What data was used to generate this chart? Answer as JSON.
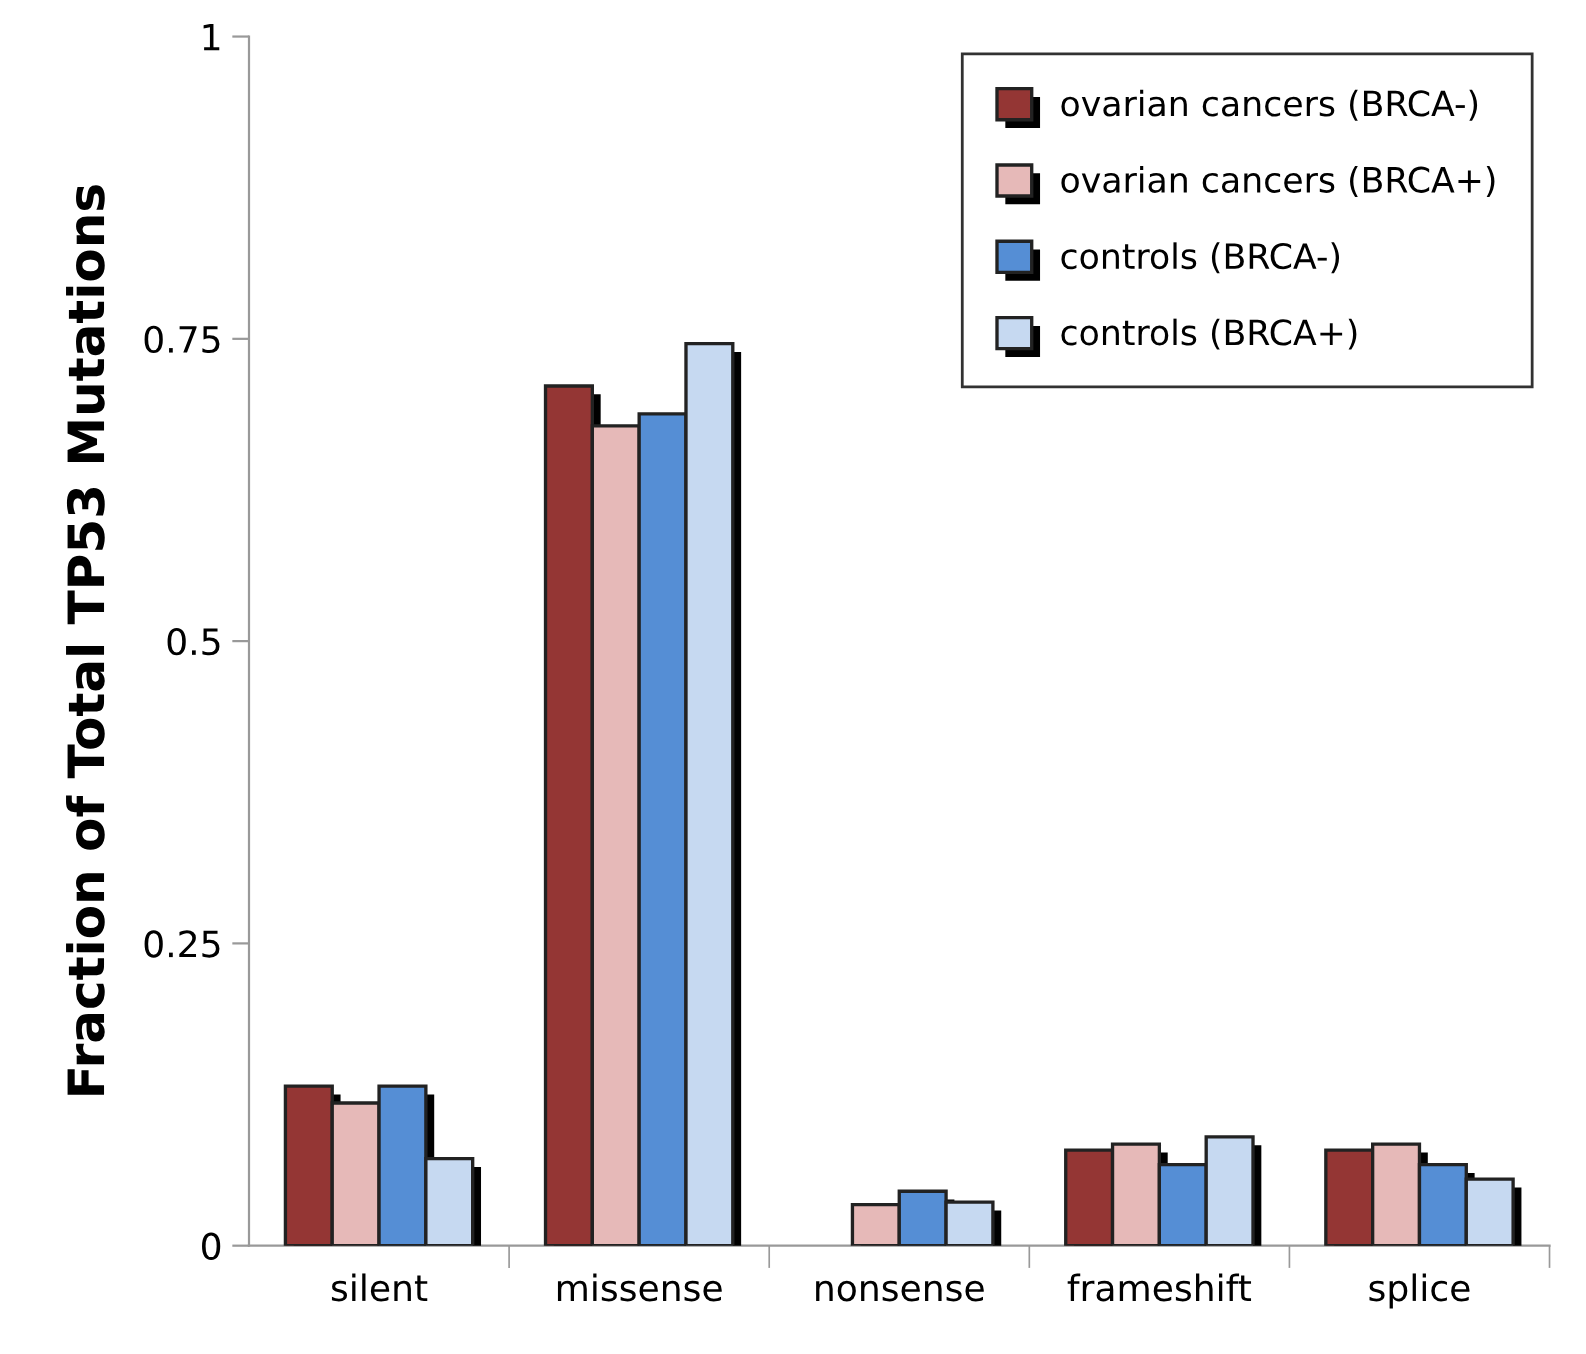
{
  "chart_data": {
    "type": "bar",
    "ylabel": "Fraction of Total TP53 Mutations",
    "categories": [
      "silent",
      "missense",
      "nonsense",
      "frameshift",
      "splice"
    ],
    "series": [
      {
        "name": "ovarian cancers (BRCA-)",
        "color": "#943634",
        "values": [
          0.132,
          0.711,
          0,
          0.079,
          0.079
        ]
      },
      {
        "name": "ovarian cancers (BRCA+)",
        "color": "#e6b9b8",
        "values": [
          0.118,
          0.678,
          0.034,
          0.084,
          0.084
        ]
      },
      {
        "name": "controls (BRCA-)",
        "color": "#558ed5",
        "values": [
          0.132,
          0.688,
          0.045,
          0.067,
          0.067
        ]
      },
      {
        "name": "controls (BRCA+)",
        "color": "#c6d9f1",
        "values": [
          0.072,
          0.746,
          0.036,
          0.09,
          0.055
        ]
      }
    ],
    "ylim": [
      0,
      1
    ],
    "yticks": [
      0,
      0.25,
      0.5,
      0.75,
      1
    ],
    "grid": false,
    "legend": "top right"
  }
}
